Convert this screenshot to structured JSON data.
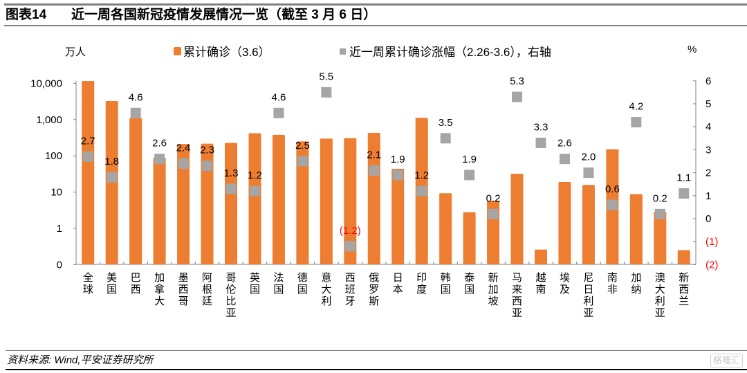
{
  "header": {
    "figure_number": "图表14",
    "title": "近一周各国新冠疫情发展情况一览（截至 3 月 6 日）"
  },
  "footer": {
    "source": "资料来源: Wind,平安证券研究所",
    "watermark": "格隆汇"
  },
  "colors": {
    "bar": "#ED7D31",
    "marker": "#A5A5A5",
    "negative_label": "#FF0000",
    "axis": "#808080"
  },
  "chart_data": {
    "type": "bar",
    "title": "近一周各国新冠疫情发展情况一览（截至 3 月 6 日）",
    "left_axis": {
      "unit_label": "万人",
      "scale": "log",
      "ticks": [
        0.1,
        1,
        10,
        100,
        1000,
        10000
      ],
      "tick_labels": [
        "0",
        "1",
        "10",
        "100",
        "1,000",
        "10,000"
      ]
    },
    "right_axis": {
      "unit_label": "%",
      "ylim": [
        -2,
        6
      ],
      "ticks": [
        -2,
        -1,
        0,
        1,
        2,
        3,
        4,
        5,
        6
      ],
      "tick_labels": [
        "(2)",
        "(1)",
        "0",
        "1",
        "2",
        "3",
        "4",
        "5",
        "6"
      ]
    },
    "legend": {
      "placement": "top",
      "entries": [
        "累计确诊（3.6）",
        "近一周累计确诊涨幅（2.26-3.6），右轴"
      ]
    },
    "categories": [
      "全球",
      "美国",
      "巴西",
      "加拿大",
      "墨西哥",
      "阿根廷",
      "哥伦比亚",
      "英国",
      "法国",
      "德国",
      "意大利",
      "西班牙",
      "俄罗斯",
      "日本",
      "印度",
      "韩国",
      "泰国",
      "新加坡",
      "马来西亚",
      "越南",
      "埃及",
      "尼日利亚",
      "南非",
      "加纳",
      "澳大利亚",
      "新西兰"
    ],
    "series": [
      {
        "name": "累计确诊（3.6）",
        "axis": "left",
        "kind": "bar",
        "values": [
          11600,
          3250,
          1100,
          88,
          212,
          217,
          227,
          420,
          380,
          250,
          300,
          310,
          430,
          44,
          1120,
          9.3,
          2.8,
          5.8,
          32,
          0.26,
          19,
          15.8,
          152,
          8.8,
          2.9,
          0.25
        ]
      },
      {
        "name": "近一周累计确诊涨幅（2.26-3.6），右轴",
        "axis": "right",
        "kind": "marker",
        "values": [
          2.7,
          1.8,
          4.6,
          2.6,
          2.4,
          2.3,
          1.3,
          1.2,
          4.6,
          2.5,
          5.5,
          -1.2,
          2.1,
          1.9,
          1.2,
          3.5,
          1.9,
          0.2,
          5.3,
          3.3,
          2.6,
          2.0,
          0.6,
          4.2,
          0.2,
          1.1
        ],
        "data_labels": [
          "2.7",
          "1.8",
          "4.6",
          "2.6",
          "2.4",
          "2.3",
          "1.3",
          "1.2",
          "4.6",
          "2.5",
          "5.5",
          "(1.2)",
          "2.1",
          "1.9",
          "1.2",
          "3.5",
          "1.9",
          "0.2",
          "5.3",
          "3.3",
          "2.6",
          "2.0",
          "0.6",
          "4.2",
          "0.2",
          "1.1"
        ]
      }
    ]
  }
}
